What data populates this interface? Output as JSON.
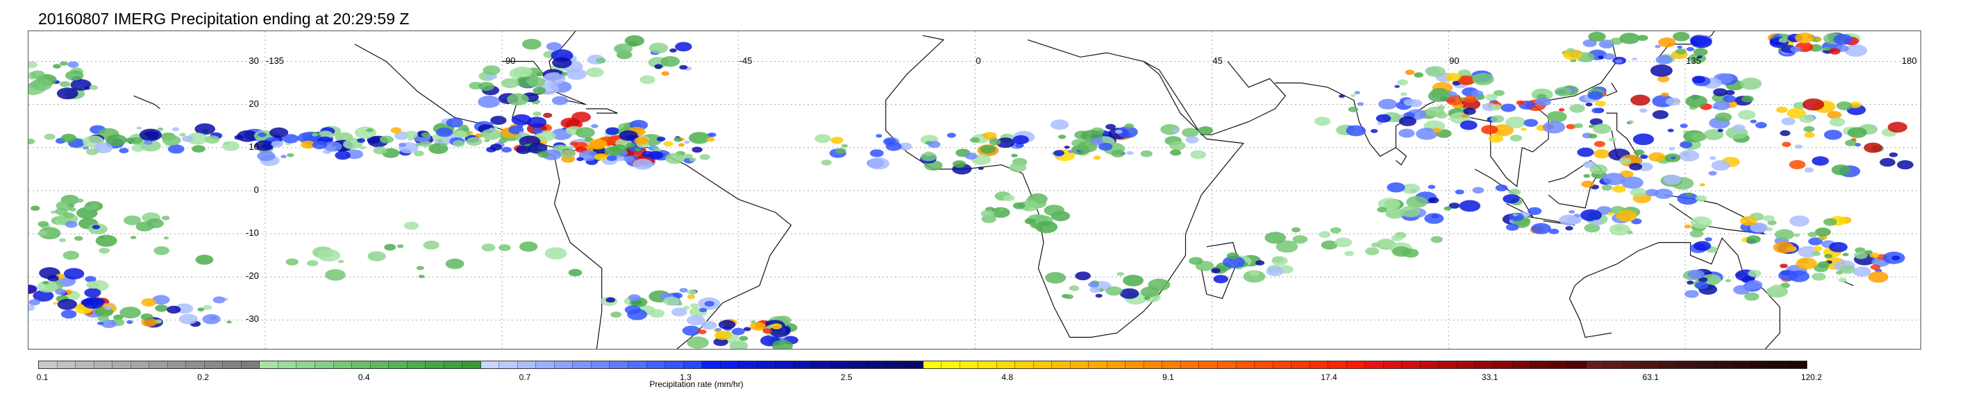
{
  "title": "20160807 IMERG Precipitation ending at 20:29:59 Z",
  "map": {
    "lat_labels": [
      "30",
      "20",
      "10",
      "0",
      "-10",
      "-20",
      "-30"
    ],
    "lon_labels": [
      "-135",
      "-90",
      "-45",
      "0",
      "45",
      "90",
      "135",
      "180"
    ],
    "grid_style": "dotted",
    "land_outline_color": "#000000"
  },
  "colorbar": {
    "title": "Precipitation rate (mm/hr)",
    "ticks": [
      "0.1",
      "0.2",
      "0.4",
      "0.7",
      "1.3",
      "2.5",
      "4.8",
      "9.1",
      "17.4",
      "33.1",
      "63.1",
      "120.2"
    ],
    "colors": [
      "#c9c9c9",
      "#c2c2c2",
      "#bababa",
      "#b3b3b3",
      "#acacac",
      "#a5a5a5",
      "#9e9e9e",
      "#979797",
      "#909090",
      "#8a8a8a",
      "#838383",
      "#7c7c7c",
      "#a6e3a6",
      "#9adc9a",
      "#8ed58e",
      "#82ce82",
      "#76c776",
      "#6ac06a",
      "#5fb95f",
      "#55b355",
      "#4cad4c",
      "#44a744",
      "#3da13d",
      "#369b36",
      "#c8d6ff",
      "#b9caff",
      "#aabdff",
      "#9bb0ff",
      "#8ca3ff",
      "#7d96ff",
      "#6e89ff",
      "#5f7cff",
      "#506fff",
      "#4262ff",
      "#3455ff",
      "#2648ff",
      "#0a1fff",
      "#0a1cf0",
      "#0a19e1",
      "#0a16d2",
      "#0a13c3",
      "#0a10b4",
      "#0a0ea5",
      "#0a0c96",
      "#0a0a88",
      "#090a7c",
      "#080a70",
      "#070a64",
      "#ffff00",
      "#fff700",
      "#ffee00",
      "#ffe500",
      "#ffdb00",
      "#ffd100",
      "#ffc700",
      "#ffbd00",
      "#ffb300",
      "#ffa800",
      "#ff9d00",
      "#ff9200",
      "#ff8800",
      "#ff7e00",
      "#ff7400",
      "#ff6a00",
      "#ff6000",
      "#ff5600",
      "#ff4c00",
      "#ff4200",
      "#ff3800",
      "#ff2e00",
      "#ff2400",
      "#ff1a00",
      "#f01010",
      "#e00e0e",
      "#d10c0c",
      "#c20a0a",
      "#b30909",
      "#a40808",
      "#950707",
      "#860606",
      "#780505",
      "#6b0404",
      "#5e0303",
      "#520202",
      "#6a1a1a",
      "#601818",
      "#571616",
      "#4e1414",
      "#461212",
      "#3e1010",
      "#370e0e",
      "#300c0c",
      "#2a0a0a",
      "#250808",
      "#210707",
      "#1e0606"
    ]
  }
}
